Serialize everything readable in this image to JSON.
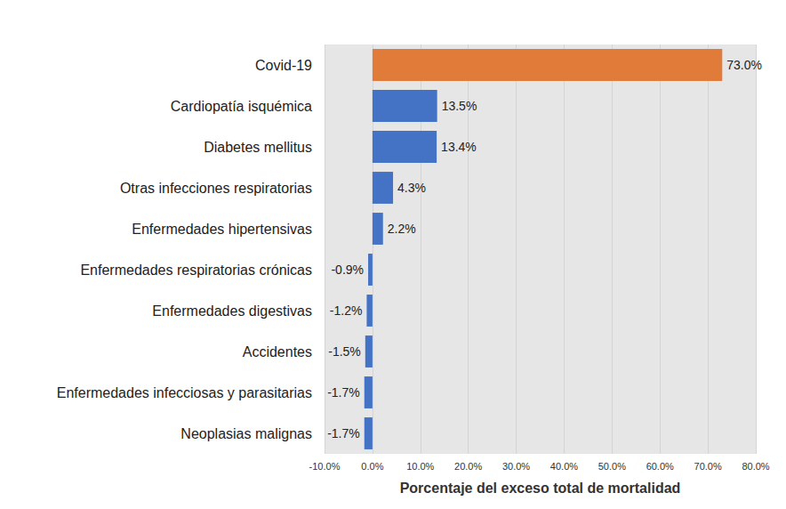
{
  "chart_data": {
    "type": "bar",
    "orientation": "horizontal",
    "categories": [
      "Covid-19",
      "Cardiopatía isquémica",
      "Diabetes mellitus",
      "Otras infecciones respiratorias",
      "Enfermedades hipertensivas",
      "Enfermedades respiratorias crónicas",
      "Enfermedades digestivas",
      "Accidentes",
      "Enfermedades infecciosas y parasitarias",
      "Neoplasias malignas"
    ],
    "values": [
      73.0,
      13.5,
      13.4,
      4.3,
      2.2,
      -0.9,
      -1.2,
      -1.5,
      -1.7,
      -1.7
    ],
    "value_labels": [
      "73.0%",
      "13.5%",
      "13.4%",
      "4.3%",
      "2.2%",
      "-0.9%",
      "-1.2%",
      "-1.5%",
      "-1.7%",
      "-1.7%"
    ],
    "colors": [
      "#e07b39",
      "#4472c4",
      "#4472c4",
      "#4472c4",
      "#4472c4",
      "#4472c4",
      "#4472c4",
      "#4472c4",
      "#4472c4",
      "#4472c4"
    ],
    "xlabel": "Porcentaje del exceso total de mortalidad",
    "xlim": [
      -10,
      80
    ],
    "xticks": [
      {
        "value": -10,
        "label": "-10.0%"
      },
      {
        "value": 0,
        "label": "0.0%"
      },
      {
        "value": 10,
        "label": "10.0%"
      },
      {
        "value": 20,
        "label": "20.0%"
      },
      {
        "value": 30,
        "label": "30.0%"
      },
      {
        "value": 40,
        "label": "40.0%"
      },
      {
        "value": 50,
        "label": "50.0%"
      },
      {
        "value": 60,
        "label": "60.0%"
      },
      {
        "value": 70,
        "label": "70.0%"
      },
      {
        "value": 80,
        "label": "80.0%"
      }
    ],
    "data_labels": true,
    "grid": true
  }
}
